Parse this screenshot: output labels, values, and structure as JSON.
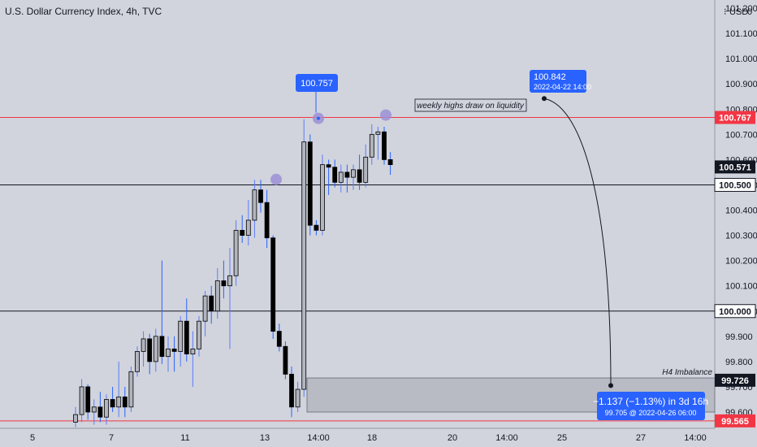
{
  "chart_data": {
    "type": "candlestick",
    "title": "U.S. Dollar Currency Index, 4h, TVC",
    "currency_label": "USD",
    "currency_value": "0",
    "y_ticks": [
      99.6,
      99.7,
      99.8,
      99.9,
      100.0,
      100.1,
      100.2,
      100.3,
      100.4,
      100.5,
      100.6,
      100.7,
      100.8,
      100.9,
      101.0,
      101.1,
      101.2
    ],
    "y_tick_labels": [
      "99.600",
      "99.700",
      "99.800",
      "99.900",
      "100.000",
      "100.100",
      "100.200",
      "100.300",
      "100.400",
      "100.500",
      "100.600",
      "100.700",
      "100.800",
      "100.900",
      "101.000",
      "101.100",
      "101.200"
    ],
    "x_tick_labels": [
      "5",
      "7",
      "11",
      "13",
      "14:00",
      "18",
      "20",
      "14:00",
      "25",
      "27",
      "14:00"
    ],
    "ylim": [
      99.55,
      101.25
    ],
    "grid": false,
    "candles": [
      {
        "o": 99.56,
        "h": 99.62,
        "l": 99.54,
        "c": 99.59
      },
      {
        "o": 99.59,
        "h": 99.73,
        "l": 99.56,
        "c": 99.7
      },
      {
        "o": 99.7,
        "h": 99.71,
        "l": 99.57,
        "c": 99.6
      },
      {
        "o": 99.6,
        "h": 99.65,
        "l": 99.55,
        "c": 99.62
      },
      {
        "o": 99.62,
        "h": 99.68,
        "l": 99.56,
        "c": 99.58
      },
      {
        "o": 99.58,
        "h": 99.67,
        "l": 99.55,
        "c": 99.65
      },
      {
        "o": 99.65,
        "h": 99.7,
        "l": 99.6,
        "c": 99.62
      },
      {
        "o": 99.62,
        "h": 99.8,
        "l": 99.58,
        "c": 99.66
      },
      {
        "o": 99.66,
        "h": 99.7,
        "l": 99.58,
        "c": 99.62
      },
      {
        "o": 99.62,
        "h": 99.78,
        "l": 99.6,
        "c": 99.76
      },
      {
        "o": 99.76,
        "h": 99.86,
        "l": 99.74,
        "c": 99.84
      },
      {
        "o": 99.84,
        "h": 99.92,
        "l": 99.78,
        "c": 99.89
      },
      {
        "o": 99.89,
        "h": 99.91,
        "l": 99.75,
        "c": 99.8
      },
      {
        "o": 99.8,
        "h": 99.93,
        "l": 99.76,
        "c": 99.9
      },
      {
        "o": 99.9,
        "h": 100.2,
        "l": 99.79,
        "c": 99.82
      },
      {
        "o": 99.82,
        "h": 99.9,
        "l": 99.76,
        "c": 99.85
      },
      {
        "o": 99.85,
        "h": 99.9,
        "l": 99.76,
        "c": 99.84
      },
      {
        "o": 99.84,
        "h": 99.98,
        "l": 99.78,
        "c": 99.96
      },
      {
        "o": 99.96,
        "h": 100.05,
        "l": 99.8,
        "c": 99.83
      },
      {
        "o": 99.83,
        "h": 99.92,
        "l": 99.7,
        "c": 99.85
      },
      {
        "o": 99.85,
        "h": 99.98,
        "l": 99.82,
        "c": 99.96
      },
      {
        "o": 99.96,
        "h": 100.08,
        "l": 99.9,
        "c": 100.06
      },
      {
        "o": 100.06,
        "h": 100.1,
        "l": 99.95,
        "c": 100.0
      },
      {
        "o": 100.0,
        "h": 100.17,
        "l": 99.97,
        "c": 100.12
      },
      {
        "o": 100.12,
        "h": 100.2,
        "l": 100.05,
        "c": 100.1
      },
      {
        "o": 100.1,
        "h": 100.25,
        "l": 99.85,
        "c": 100.14
      },
      {
        "o": 100.14,
        "h": 100.36,
        "l": 100.1,
        "c": 100.32
      },
      {
        "o": 100.32,
        "h": 100.38,
        "l": 100.27,
        "c": 100.3
      },
      {
        "o": 100.3,
        "h": 100.44,
        "l": 100.26,
        "c": 100.36
      },
      {
        "o": 100.36,
        "h": 100.52,
        "l": 100.29,
        "c": 100.48
      },
      {
        "o": 100.48,
        "h": 100.52,
        "l": 100.39,
        "c": 100.43
      },
      {
        "o": 100.43,
        "h": 100.48,
        "l": 100.25,
        "c": 100.29
      },
      {
        "o": 100.29,
        "h": 100.3,
        "l": 99.89,
        "c": 99.92
      },
      {
        "o": 99.92,
        "h": 99.95,
        "l": 99.84,
        "c": 99.86
      },
      {
        "o": 99.86,
        "h": 99.88,
        "l": 99.73,
        "c": 99.75
      },
      {
        "o": 99.75,
        "h": 99.78,
        "l": 99.58,
        "c": 99.62
      },
      {
        "o": 99.62,
        "h": 99.72,
        "l": 99.6,
        "c": 99.69
      },
      {
        "o": 99.69,
        "h": 100.76,
        "l": 99.66,
        "c": 100.67
      },
      {
        "o": 100.67,
        "h": 100.7,
        "l": 100.3,
        "c": 100.34
      },
      {
        "o": 100.34,
        "h": 100.36,
        "l": 100.3,
        "c": 100.32
      },
      {
        "o": 100.32,
        "h": 100.62,
        "l": 100.3,
        "c": 100.58
      },
      {
        "o": 100.58,
        "h": 100.6,
        "l": 100.46,
        "c": 100.57
      },
      {
        "o": 100.57,
        "h": 100.6,
        "l": 100.49,
        "c": 100.51
      },
      {
        "o": 100.51,
        "h": 100.58,
        "l": 100.47,
        "c": 100.55
      },
      {
        "o": 100.55,
        "h": 100.58,
        "l": 100.47,
        "c": 100.53
      },
      {
        "o": 100.53,
        "h": 100.58,
        "l": 100.48,
        "c": 100.56
      },
      {
        "o": 100.56,
        "h": 100.62,
        "l": 100.48,
        "c": 100.51
      },
      {
        "o": 100.51,
        "h": 100.66,
        "l": 100.49,
        "c": 100.61
      },
      {
        "o": 100.61,
        "h": 100.74,
        "l": 100.58,
        "c": 100.7
      },
      {
        "o": 100.7,
        "h": 100.73,
        "l": 100.6,
        "c": 100.71
      },
      {
        "o": 100.71,
        "h": 100.73,
        "l": 100.58,
        "c": 100.6
      },
      {
        "o": 100.6,
        "h": 100.63,
        "l": 100.54,
        "c": 100.58
      }
    ],
    "horizontal_levels": [
      {
        "value": 100.767,
        "label": "100.767",
        "color": "#f23645"
      },
      {
        "value": 100.5,
        "label": "100.500",
        "color": "#131722"
      },
      {
        "value": 100.0,
        "label": "100.000",
        "color": "#131722"
      },
      {
        "value": 99.565,
        "label": "99.565",
        "color": "#f23645"
      }
    ],
    "price_tags": [
      {
        "value": 100.571,
        "label": "100.571",
        "color": "#131722"
      },
      {
        "value": 99.726,
        "label": "99.726",
        "color": "#131722"
      }
    ],
    "annotations": {
      "high_marker_label": "100.757",
      "high_marker_value": 100.757,
      "target_label": "100.842",
      "target_date": "2022-04-22 14:00",
      "target_value": 100.842,
      "note_text": "weekly highs draw on liquidity",
      "imbalance_label": "H4 Imbalance",
      "imbalance_top": 99.735,
      "imbalance_bottom": 99.6,
      "measure_line1": "−1.137 (−1.13%) in 3d 16h",
      "measure_line2": "99.705 @ 2022-04-26  06:00",
      "measure_value": 99.705
    },
    "colors": {
      "background": "#d1d4dc",
      "bull_body": "#b2b5be",
      "bear_body": "#000000",
      "wick_bull": "#5b7cfa",
      "wick_bear": "#2962ff",
      "tag_blue": "#2962ff",
      "marker_purple": "#9c8fd6",
      "level_red": "#f23645"
    }
  }
}
